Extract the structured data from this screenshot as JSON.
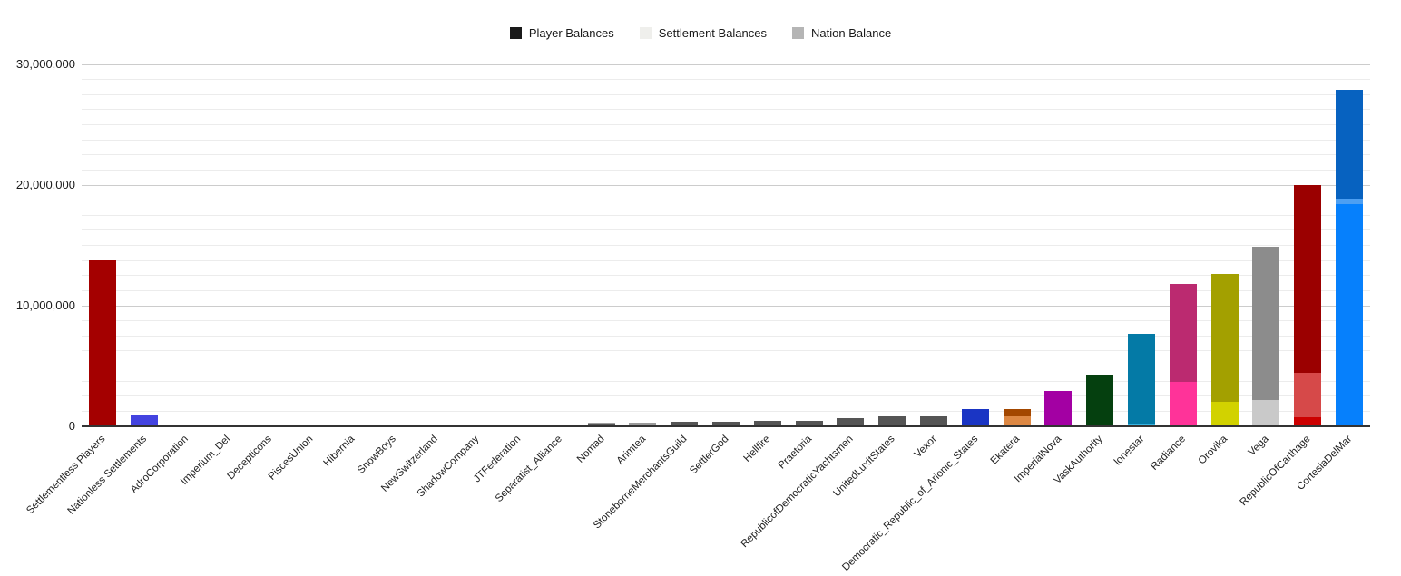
{
  "legend": [
    {
      "label": "Player Balances",
      "color": "#1a1a1a"
    },
    {
      "label": "Settlement Balances",
      "color": "#efefec"
    },
    {
      "label": "Nation Balance",
      "color": "#b5b5b5"
    }
  ],
  "axis": {
    "baseline_color": "#333333",
    "major_grid_color": "#cccccc",
    "minor_grid_color": "#ececec"
  },
  "chart_data": {
    "type": "bar",
    "stacked": true,
    "title": "",
    "xlabel": "",
    "ylabel": "",
    "legend_position": "top",
    "grid": true,
    "ylim": [
      0,
      30000000
    ],
    "yticks": [
      0,
      10000000,
      20000000,
      30000000
    ],
    "ytick_labels": [
      "0",
      "10,000,000",
      "20,000,000",
      "30,000,000"
    ],
    "minor_grid_step": 1250000,
    "x_label_rotation_deg": 45,
    "series_names": [
      "Player Balances",
      "Settlement Balances",
      "Nation Balance"
    ],
    "categories": [
      "Settlementless Players",
      "Nationless Settlements",
      "AdroCorporation",
      "Imperium_Del",
      "Decepticons",
      "PiscesUnion",
      "Hibernia",
      "SnowBoys",
      "NewSwitzerland",
      "ShadowCompany",
      "JTFederation",
      "Separatist_Alliance",
      "Nomad",
      "Arimtea",
      "StoneborneMerchantsGuild",
      "SettlerGod",
      "Hellfire",
      "Praetoria",
      "RepublicofDemocraticYachtsmen",
      "UnitedLuxitStates",
      "Vexor",
      "Democratic_Republic_of_Arionic_States",
      "Ekatera",
      "ImperialNova",
      "VaskAuthority",
      "lonestar",
      "Radiance",
      "Orovika",
      "Vega",
      "RepublicOfCarthage",
      "CortesiaDelMar"
    ],
    "bars": [
      {
        "category": "Settlementless Players",
        "segments": [
          {
            "series": "Player Balances",
            "value": 13750000,
            "color": "#a40000"
          }
        ]
      },
      {
        "category": "Nationless Settlements",
        "segments": [
          {
            "series": "Settlement Balances",
            "value": 900000,
            "color": "#4343e0"
          }
        ]
      },
      {
        "category": "AdroCorporation",
        "segments": [
          {
            "series": "Player Balances",
            "value": 30000,
            "color": "#555555"
          }
        ]
      },
      {
        "category": "Imperium_Del",
        "segments": [
          {
            "series": "Player Balances",
            "value": 40000,
            "color": "#555555"
          }
        ]
      },
      {
        "category": "Decepticons",
        "segments": [
          {
            "series": "Settlement Balances",
            "value": 60000,
            "color": "#b5b5b5"
          }
        ]
      },
      {
        "category": "PiscesUnion",
        "segments": [
          {
            "series": "Player Balances",
            "value": 20000,
            "color": "#555555"
          }
        ]
      },
      {
        "category": "Hibernia",
        "segments": [
          {
            "series": "Player Balances",
            "value": 30000,
            "color": "#555555"
          }
        ]
      },
      {
        "category": "SnowBoys",
        "segments": [
          {
            "series": "Player Balances",
            "value": 40000,
            "color": "#555555"
          }
        ]
      },
      {
        "category": "NewSwitzerland",
        "segments": [
          {
            "series": "Player Balances",
            "value": 40000,
            "color": "#555555"
          }
        ]
      },
      {
        "category": "ShadowCompany",
        "segments": [
          {
            "series": "Player Balances",
            "value": 60000,
            "color": "#555555"
          }
        ]
      },
      {
        "category": "JTFederation",
        "segments": [
          {
            "series": "Player Balances",
            "value": 150000,
            "color": "#567c0a"
          }
        ]
      },
      {
        "category": "Separatist_Alliance",
        "segments": [
          {
            "series": "Player Balances",
            "value": 180000,
            "color": "#4d4d4d"
          }
        ]
      },
      {
        "category": "Nomad",
        "segments": [
          {
            "series": "Player Balances",
            "value": 200000,
            "color": "#555555"
          },
          {
            "series": "Settlement Balances",
            "value": 60000,
            "color": "#9e9e9e"
          }
        ]
      },
      {
        "category": "Arimtea",
        "segments": [
          {
            "series": "Settlement Balances",
            "value": 280000,
            "color": "#9a9a9a"
          }
        ]
      },
      {
        "category": "StoneborneMerchantsGuild",
        "segments": [
          {
            "series": "Player Balances",
            "value": 400000,
            "color": "#555555"
          }
        ]
      },
      {
        "category": "SettlerGod",
        "segments": [
          {
            "series": "Player Balances",
            "value": 350000,
            "color": "#555555"
          }
        ]
      },
      {
        "category": "Hellfire",
        "segments": [
          {
            "series": "Player Balances",
            "value": 450000,
            "color": "#555555"
          }
        ]
      },
      {
        "category": "Praetoria",
        "segments": [
          {
            "series": "Player Balances",
            "value": 450000,
            "color": "#555555"
          }
        ]
      },
      {
        "category": "RepublicofDemocraticYachtsmen",
        "segments": [
          {
            "series": "Settlement Balances",
            "value": 150000,
            "color": "#b3b3b3"
          },
          {
            "series": "Nation Balance",
            "value": 550000,
            "color": "#555555"
          }
        ]
      },
      {
        "category": "UnitedLuxitStates",
        "segments": [
          {
            "series": "Player Balances",
            "value": 800000,
            "color": "#555555"
          }
        ]
      },
      {
        "category": "Vexor",
        "segments": [
          {
            "series": "Player Balances",
            "value": 850000,
            "color": "#555555"
          }
        ]
      },
      {
        "category": "Democratic_Republic_of_Arionic_States",
        "segments": [
          {
            "series": "Player Balances",
            "value": 1400000,
            "color": "#1a35c4"
          }
        ]
      },
      {
        "category": "Ekatera",
        "segments": [
          {
            "series": "Settlement Balances",
            "value": 850000,
            "color": "#dd8844"
          },
          {
            "series": "Nation Balance",
            "value": 600000,
            "color": "#a34700"
          }
        ]
      },
      {
        "category": "ImperialNova",
        "segments": [
          {
            "series": "Player Balances",
            "value": 120000,
            "color": "#cf00cf"
          },
          {
            "series": "Nation Balance",
            "value": 2780000,
            "color": "#a300a3"
          }
        ]
      },
      {
        "category": "VaskAuthority",
        "segments": [
          {
            "series": "Nation Balance",
            "value": 4300000,
            "color": "#05400f"
          }
        ]
      },
      {
        "category": "lonestar",
        "segments": [
          {
            "series": "Settlement Balances",
            "value": 250000,
            "color": "#35b2e0"
          },
          {
            "series": "Nation Balance",
            "value": 7450000,
            "color": "#047aa6"
          }
        ]
      },
      {
        "category": "Radiance",
        "segments": [
          {
            "series": "Player Balances",
            "value": 3650000,
            "color": "#ff3399"
          },
          {
            "series": "Nation Balance",
            "value": 8150000,
            "color": "#bb2a70"
          }
        ]
      },
      {
        "category": "Orovika",
        "segments": [
          {
            "series": "Player Balances",
            "value": 2050000,
            "color": "#d2d200"
          },
          {
            "series": "Nation Balance",
            "value": 10550000,
            "color": "#a3a000"
          }
        ]
      },
      {
        "category": "Vega",
        "segments": [
          {
            "series": "Settlement Balances",
            "value": 2200000,
            "color": "#c9c9c9"
          },
          {
            "series": "Nation Balance",
            "value": 12700000,
            "color": "#8c8c8c"
          }
        ]
      },
      {
        "category": "RepublicOfCarthage",
        "segments": [
          {
            "series": "Player Balances",
            "value": 750000,
            "color": "#cc0000"
          },
          {
            "series": "Settlement Balances",
            "value": 3650000,
            "color": "#d64949"
          },
          {
            "series": "Nation Balance",
            "value": 15600000,
            "color": "#9b0000"
          }
        ]
      },
      {
        "category": "CortesiaDelMar",
        "segments": [
          {
            "series": "Player Balances",
            "value": 18400000,
            "color": "#0680fc"
          },
          {
            "series": "Settlement Balances",
            "value": 450000,
            "color": "#4d9ff2"
          },
          {
            "series": "Nation Balance",
            "value": 9050000,
            "color": "#0762c0"
          }
        ]
      }
    ]
  }
}
